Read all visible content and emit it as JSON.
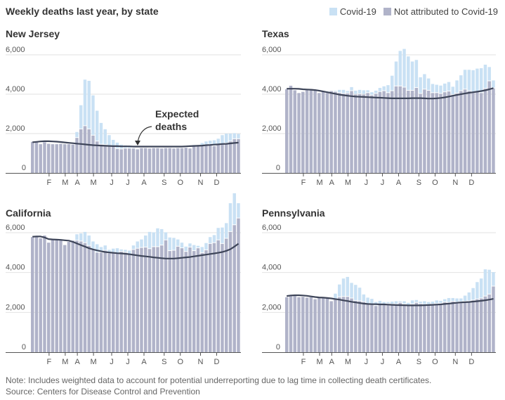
{
  "title": "Weekly deaths last year, by state",
  "legend": [
    {
      "label": "Covid-19",
      "color": "#c9e1f4"
    },
    {
      "label": "Not attributed to Covid-19",
      "color": "#b0b3c9"
    }
  ],
  "colors": {
    "covid": "#c9e1f4",
    "other": "#b0b3c9",
    "expected": "#3e4559",
    "grid": "#e2e2e2",
    "axis": "#555555"
  },
  "annotation": {
    "line1": "Expected",
    "line2": "deaths"
  },
  "note": "Note: Includes weighted data to account for potential underreporting due to lag time in collecting death certificates.",
  "source": "Source: Centers for Disease Control and Prevention",
  "chart_data": [
    {
      "type": "bar",
      "title": "New Jersey",
      "stacked": true,
      "ylim": [
        0,
        6000
      ],
      "yticks": [
        0,
        2000,
        4000,
        6000
      ],
      "ytick_labels": [
        "0",
        "2,000",
        "4,000",
        "6,000"
      ],
      "month_labels": [
        "F",
        "M",
        "A",
        "M",
        "J",
        "J",
        "A",
        "S",
        "O",
        "N",
        "D"
      ],
      "month_ticks_week": [
        4.5,
        8.5,
        11.5,
        15.5,
        20,
        24,
        28,
        33,
        37,
        42,
        46
      ],
      "weeks": 52,
      "series": [
        {
          "name": "Not attributed to Covid-19",
          "values": [
            1580,
            1560,
            1460,
            1560,
            1480,
            1460,
            1460,
            1480,
            1460,
            1460,
            1440,
            1780,
            2220,
            2380,
            2220,
            1900,
            1600,
            1440,
            1420,
            1360,
            1340,
            1220,
            1200,
            1240,
            1240,
            1240,
            1200,
            1260,
            1260,
            1240,
            1260,
            1260,
            1240,
            1260,
            1260,
            1240,
            1260,
            1260,
            1280,
            1240,
            1360,
            1360,
            1380,
            1420,
            1440,
            1360,
            1440,
            1460,
            1500,
            1600,
            1720,
            1720
          ]
        },
        {
          "name": "Covid-19",
          "values": [
            0,
            0,
            0,
            0,
            0,
            0,
            0,
            0,
            0,
            0,
            0,
            300,
            1220,
            2360,
            2460,
            2040,
            1560,
            1100,
            800,
            560,
            340,
            320,
            240,
            160,
            100,
            40,
            0,
            0,
            0,
            0,
            0,
            0,
            0,
            0,
            0,
            0,
            0,
            0,
            0,
            40,
            60,
            60,
            140,
            180,
            200,
            300,
            300,
            460,
            500,
            400,
            300,
            260
          ]
        },
        {
          "name": "Expected deaths",
          "type": "line",
          "values": [
            1560,
            1580,
            1600,
            1610,
            1610,
            1600,
            1590,
            1570,
            1550,
            1530,
            1510,
            1490,
            1470,
            1450,
            1430,
            1410,
            1400,
            1390,
            1380,
            1370,
            1360,
            1360,
            1350,
            1350,
            1350,
            1340,
            1340,
            1340,
            1340,
            1340,
            1340,
            1340,
            1340,
            1340,
            1340,
            1340,
            1340,
            1340,
            1350,
            1360,
            1370,
            1380,
            1390,
            1410,
            1420,
            1440,
            1450,
            1470,
            1480,
            1500,
            1520,
            1540
          ]
        }
      ]
    },
    {
      "type": "bar",
      "title": "Texas",
      "stacked": true,
      "ylim": [
        0,
        6000
      ],
      "yticks": [
        0,
        2000,
        4000,
        6000
      ],
      "ytick_labels": [
        "0",
        "2,000",
        "4,000",
        "6,000"
      ],
      "month_labels": [
        "F",
        "M",
        "A",
        "M",
        "J",
        "J",
        "A",
        "S",
        "O",
        "N",
        "D"
      ],
      "month_ticks_week": [
        4.5,
        8.5,
        11.5,
        15.5,
        20,
        24,
        28,
        33,
        37,
        42,
        46
      ],
      "weeks": 52,
      "series": [
        {
          "name": "Not attributed to Covid-19",
          "values": [
            4250,
            4430,
            4200,
            4060,
            4120,
            4260,
            4260,
            4180,
            4060,
            4140,
            4060,
            4160,
            4120,
            4060,
            4020,
            4040,
            4160,
            3980,
            4000,
            3980,
            4060,
            3940,
            4020,
            4120,
            4160,
            4060,
            4160,
            4400,
            4400,
            4340,
            4180,
            4180,
            4320,
            4020,
            4240,
            4180,
            4060,
            4060,
            4020,
            4100,
            4140,
            3960,
            4040,
            4160,
            4240,
            4160,
            4100,
            4120,
            4060,
            4280,
            4660,
            4300
          ]
        },
        {
          "name": "Covid-19",
          "values": [
            0,
            0,
            0,
            0,
            0,
            0,
            0,
            0,
            0,
            0,
            80,
            20,
            60,
            160,
            200,
            120,
            200,
            200,
            220,
            220,
            140,
            160,
            160,
            200,
            240,
            400,
            780,
            1260,
            1800,
            1960,
            1740,
            1480,
            1420,
            840,
            780,
            620,
            460,
            420,
            420,
            440,
            480,
            420,
            660,
            800,
            1000,
            1080,
            1120,
            1180,
            1260,
            1220,
            720,
            400
          ]
        },
        {
          "name": "Expected deaths",
          "type": "line",
          "values": [
            4280,
            4280,
            4280,
            4270,
            4250,
            4240,
            4230,
            4210,
            4180,
            4140,
            4100,
            4060,
            4020,
            3980,
            3950,
            3920,
            3900,
            3880,
            3870,
            3860,
            3850,
            3840,
            3830,
            3820,
            3810,
            3800,
            3790,
            3790,
            3790,
            3790,
            3790,
            3800,
            3800,
            3800,
            3790,
            3780,
            3780,
            3790,
            3810,
            3840,
            3880,
            3920,
            3960,
            4000,
            4040,
            4070,
            4100,
            4130,
            4160,
            4200,
            4250,
            4310
          ]
        }
      ]
    },
    {
      "type": "bar",
      "title": "California",
      "stacked": true,
      "ylim": [
        0,
        6000
      ],
      "yticks": [
        0,
        2000,
        4000,
        6000
      ],
      "ytick_labels": [
        "0",
        "2,000",
        "4,000",
        "6,000"
      ],
      "month_labels": [
        "F",
        "M",
        "A",
        "M",
        "J",
        "J",
        "A",
        "S",
        "O",
        "N",
        "D"
      ],
      "month_ticks_week": [
        4.5,
        8.5,
        11.5,
        15.5,
        20,
        24,
        28,
        33,
        37,
        42,
        46
      ],
      "weeks": 52,
      "series": [
        {
          "name": "Not attributed to Covid-19",
          "values": [
            5780,
            5800,
            5720,
            5860,
            5500,
            5700,
            5620,
            5620,
            5380,
            5540,
            5600,
            5600,
            5560,
            5480,
            5340,
            5160,
            5000,
            5000,
            5100,
            4960,
            5000,
            4960,
            5040,
            5000,
            4900,
            5140,
            5200,
            5240,
            5260,
            5180,
            5280,
            5280,
            5360,
            5620,
            5080,
            5100,
            5300,
            5220,
            5040,
            5260,
            5080,
            5220,
            4980,
            5120,
            5440,
            5480,
            5620,
            5440,
            5700,
            6040,
            6380,
            6720
          ]
        },
        {
          "name": "Covid-19",
          "values": [
            0,
            0,
            0,
            0,
            0,
            0,
            0,
            0,
            0,
            0,
            40,
            320,
            400,
            560,
            520,
            400,
            420,
            280,
            260,
            180,
            200,
            260,
            120,
            140,
            200,
            220,
            360,
            420,
            600,
            860,
            740,
            940,
            820,
            400,
            680,
            640,
            360,
            280,
            260,
            200,
            300,
            120,
            300,
            360,
            340,
            400,
            620,
            820,
            780,
            1440,
            1600,
            760
          ]
        },
        {
          "name": "Expected deaths",
          "type": "line",
          "values": [
            5800,
            5810,
            5810,
            5760,
            5680,
            5660,
            5650,
            5640,
            5620,
            5600,
            5540,
            5460,
            5380,
            5300,
            5220,
            5160,
            5110,
            5070,
            5030,
            5010,
            4990,
            4970,
            4960,
            4940,
            4920,
            4890,
            4860,
            4830,
            4810,
            4790,
            4760,
            4740,
            4720,
            4700,
            4700,
            4700,
            4720,
            4740,
            4760,
            4780,
            4810,
            4840,
            4870,
            4900,
            4930,
            4960,
            4990,
            5030,
            5090,
            5170,
            5300,
            5450
          ]
        }
      ]
    },
    {
      "type": "bar",
      "title": "Pennsylvania",
      "stacked": true,
      "ylim": [
        0,
        6000
      ],
      "yticks": [
        0,
        2000,
        4000,
        6000
      ],
      "ytick_labels": [
        "0",
        "2,000",
        "4,000",
        "6,000"
      ],
      "month_labels": [
        "F",
        "M",
        "A",
        "M",
        "J",
        "J",
        "A",
        "S",
        "O",
        "N",
        "D"
      ],
      "month_ticks_week": [
        4.5,
        8.5,
        11.5,
        15.5,
        20,
        24,
        28,
        33,
        37,
        42,
        46
      ],
      "weeks": 52,
      "series": [
        {
          "name": "Not attributed to Covid-19",
          "values": [
            2760,
            2820,
            2820,
            2760,
            2780,
            2740,
            2760,
            2660,
            2740,
            2720,
            2700,
            2560,
            2640,
            2760,
            2780,
            2780,
            2700,
            2580,
            2560,
            2520,
            2400,
            2380,
            2320,
            2400,
            2380,
            2420,
            2400,
            2400,
            2480,
            2400,
            2340,
            2400,
            2480,
            2420,
            2380,
            2380,
            2400,
            2420,
            2440,
            2500,
            2480,
            2540,
            2500,
            2520,
            2540,
            2560,
            2600,
            2660,
            2700,
            2800,
            2900,
            3300
          ]
        },
        {
          "name": "Covid-19",
          "values": [
            0,
            0,
            0,
            0,
            0,
            0,
            0,
            0,
            0,
            0,
            0,
            0,
            300,
            640,
            920,
            1000,
            780,
            800,
            680,
            380,
            340,
            300,
            200,
            180,
            140,
            100,
            140,
            160,
            80,
            160,
            140,
            200,
            140,
            120,
            180,
            140,
            140,
            180,
            140,
            160,
            240,
            180,
            200,
            180,
            300,
            440,
            620,
            860,
            1000,
            1360,
            1240,
            720
          ]
        },
        {
          "name": "Expected deaths",
          "type": "line",
          "values": [
            2820,
            2850,
            2860,
            2860,
            2850,
            2830,
            2800,
            2770,
            2750,
            2740,
            2720,
            2700,
            2670,
            2640,
            2600,
            2570,
            2530,
            2500,
            2470,
            2440,
            2420,
            2410,
            2410,
            2400,
            2400,
            2390,
            2380,
            2370,
            2360,
            2360,
            2350,
            2350,
            2350,
            2350,
            2360,
            2370,
            2380,
            2390,
            2400,
            2420,
            2440,
            2460,
            2480,
            2500,
            2510,
            2520,
            2540,
            2560,
            2580,
            2610,
            2640,
            2680
          ]
        }
      ]
    }
  ]
}
